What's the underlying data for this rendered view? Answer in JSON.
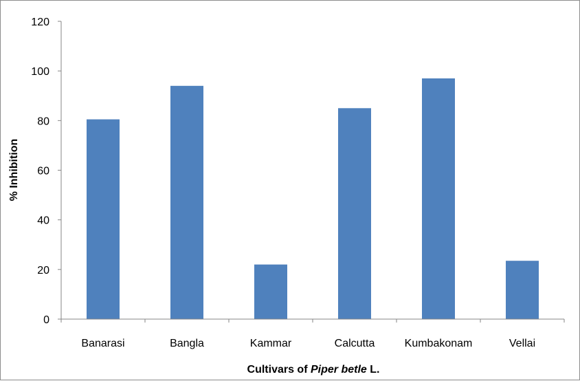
{
  "chart_data": {
    "type": "bar",
    "categories": [
      "Banarasi",
      "Bangla",
      "Kammar",
      "Calcutta",
      "Kumbakonam",
      "Vellai"
    ],
    "values": [
      80.5,
      94,
      22,
      85,
      97,
      23.5
    ],
    "ylabel": "% Inhibition",
    "xlabel": {
      "prefix": "Cultivars of ",
      "italic": "Piper betle",
      "suffix": " L."
    },
    "ylim": [
      0,
      120
    ],
    "yticks": [
      0,
      20,
      40,
      60,
      80,
      100,
      120
    ],
    "grid": false,
    "legend": "none",
    "bar_color": "#4f81bd",
    "axis_color": "#868686"
  }
}
